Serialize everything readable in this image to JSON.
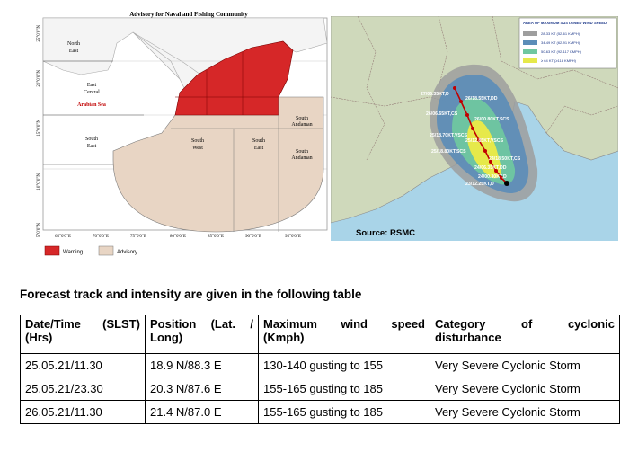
{
  "left_map": {
    "title": "Advisory for Naval and Fishing Community",
    "regions": {
      "north_east": [
        "North",
        "East"
      ],
      "east_central": [
        "East",
        "Central"
      ],
      "arabian_sea": "Arabian Sea",
      "south_east": [
        "South",
        "East"
      ],
      "south_west": [
        "South",
        "West"
      ],
      "south_east_bay": [
        "South",
        "East"
      ],
      "south_andaman_1": [
        "South",
        "Andaman"
      ],
      "south_andaman_2": [
        "South",
        "Andaman"
      ]
    },
    "lat_ticks": [
      "25°0'0\"N",
      "20°0'0\"N",
      "15°0'0\"N",
      "10°0'0\"N",
      "5°0'0\"N"
    ],
    "lon_ticks": [
      "65°0'0\"E",
      "70°0'0\"E",
      "75°0'0\"E",
      "80°0'0\"E",
      "85°0'0\"E",
      "90°0'0\"E",
      "95°0'0\"E"
    ],
    "legend": {
      "warning": "Warning",
      "advisory": "Advisory"
    },
    "colors": {
      "warning": "#d62728",
      "advisory": "#e8d5c4"
    }
  },
  "right_map": {
    "legend_title": "AREA OF MAXIMUM SUSTAINED WIND SPEED",
    "legend_items": [
      {
        "label": "28-33 KT (52-61 KMPH)",
        "color": "#9e9e9e"
      },
      {
        "label": "34-49 KT (62-91 KMPH)",
        "color": "#5b8db8"
      },
      {
        "label": "50-63 KT (92-117 KMPH)",
        "color": "#6fc7a0"
      },
      {
        "label": "≥ 64 KT (≥118 KMPH)",
        "color": "#e6e94a"
      }
    ],
    "track_labels": [
      "27/06.35KT,D",
      "26/18.55KT,DD",
      "26/06.65KT,CS",
      "26/00.80KT,SCS",
      "25/18.70KT,VSCS",
      "25/12.85KT,VSCS",
      "25/18.80KT,SCS",
      "24/18.50KT,CS",
      "24/06.35KT,DD",
      "24/00.30KT,D",
      "23/12.25KT,D"
    ],
    "source": "Source: RSMC"
  },
  "caption": "Forecast track and intensity are given in the following table",
  "table": {
    "headers": {
      "col1": [
        "Date/Time",
        "(SLST)",
        "(Hrs)"
      ],
      "col2": [
        "Position",
        "(Lat.",
        "/",
        "Long)"
      ],
      "col3": [
        "Maximum",
        "wind",
        "speed",
        "(Kmph)"
      ],
      "col4": [
        "Category",
        "of",
        "cyclonic",
        "disturbance"
      ]
    },
    "rows": [
      {
        "datetime": "25.05.21/11.30",
        "position": "18.9 N/88.3 E",
        "wind": "130-140 gusting to 155",
        "category": "Very Severe Cyclonic Storm"
      },
      {
        "datetime": "25.05.21/23.30",
        "position": "20.3 N/87.6 E",
        "wind": "155-165 gusting to 185",
        "category": "Very Severe Cyclonic Storm"
      },
      {
        "datetime": "26.05.21/11.30",
        "position": "21.4 N/87.0 E",
        "wind": "155-165 gusting to 185",
        "category": "Very Severe Cyclonic Storm"
      }
    ]
  }
}
